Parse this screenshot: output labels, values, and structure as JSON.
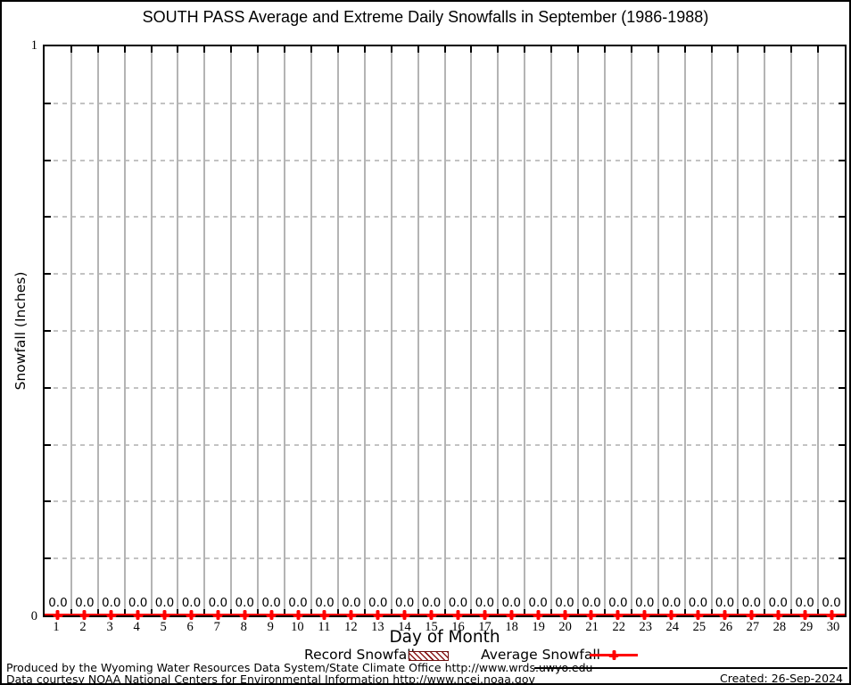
{
  "chart_data": {
    "type": "line",
    "title": "SOUTH PASS Average and Extreme Daily Snowfalls in September (1986-1988)",
    "xlabel": "Day of Month",
    "ylabel": "Snowfall (Inches)",
    "ylim": [
      0,
      1
    ],
    "xlim": [
      0.5,
      30.5
    ],
    "ytick_labels": [
      "1",
      "0"
    ],
    "y_minor_tick_step": 0.1,
    "grid": true,
    "legend_position": "bottom",
    "categories": [
      1,
      2,
      3,
      4,
      5,
      6,
      7,
      8,
      9,
      10,
      11,
      12,
      13,
      14,
      15,
      16,
      17,
      18,
      19,
      20,
      21,
      22,
      23,
      24,
      25,
      26,
      27,
      28,
      29,
      30
    ],
    "series": [
      {
        "name": "Record Snowfall",
        "style": "hatched-box",
        "color": "#8b1a1a",
        "values": [
          0,
          0,
          0,
          0,
          0,
          0,
          0,
          0,
          0,
          0,
          0,
          0,
          0,
          0,
          0,
          0,
          0,
          0,
          0,
          0,
          0,
          0,
          0,
          0,
          0,
          0,
          0,
          0,
          0,
          0
        ]
      },
      {
        "name": "Average Snowfall",
        "style": "line-plus-marker",
        "color": "#ff0000",
        "values": [
          0,
          0,
          0,
          0,
          0,
          0,
          0,
          0,
          0,
          0,
          0,
          0,
          0,
          0,
          0,
          0,
          0,
          0,
          0,
          0,
          0,
          0,
          0,
          0,
          0,
          0,
          0,
          0,
          0,
          0
        ]
      }
    ],
    "point_labels": [
      "0.0",
      "0.0",
      "0.0",
      "0.0",
      "0.0",
      "0.0",
      "0.0",
      "0.0",
      "0.0",
      "0.0",
      "0.0",
      "0.0",
      "0.0",
      "0.0",
      "0.0",
      "0.0",
      "0.0",
      "0.0",
      "0.0",
      "0.0",
      "0.0",
      "0.0",
      "0.0",
      "0.0",
      "0.0",
      "0.0",
      "0.0",
      "0.0",
      "0.0",
      "0.0"
    ]
  },
  "colors": {
    "average_line": "#ff0000",
    "record_hatch": "#8b1a1a",
    "grid_gray": "#b4b4b4"
  },
  "footer": {
    "line1": "Produced by the Wyoming Water Resources Data System/State Climate Office http://www.wrds.uwyo.edu",
    "line2": "Data courtesy NOAA National Centers for Environmental Information http://www.ncei.noaa.gov",
    "created": "Created: 26-Sep-2024"
  }
}
